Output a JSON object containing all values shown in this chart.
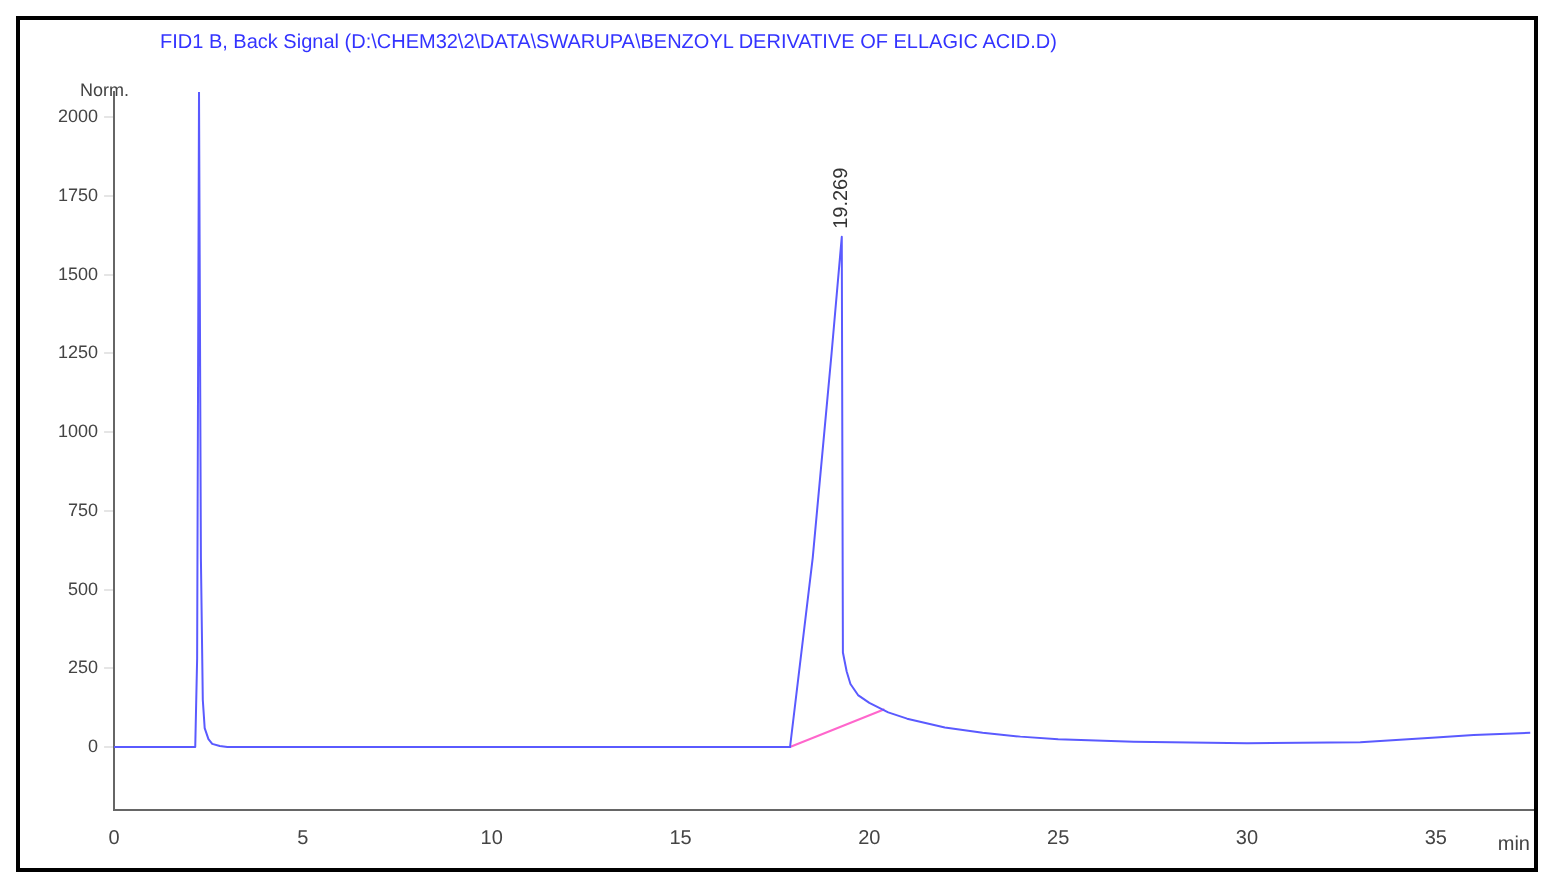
{
  "chart_data": {
    "type": "line",
    "title": "FID1 B, Back Signal (D:\\CHEM32\\2\\DATA\\SWARUPA\\BENZOYL DERIVATIVE OF ELLAGIC ACID.D)",
    "ylabel": "Norm.",
    "xlabel": "min",
    "series": [
      {
        "color": "#5a5aff",
        "x": [
          0,
          2.15,
          2.2,
          2.25,
          2.3,
          2.35,
          2.4,
          2.5,
          2.6,
          2.8,
          3,
          5,
          10,
          15,
          17.9,
          18.5,
          19,
          19.27,
          19.3,
          19.4,
          19.5,
          19.7,
          20,
          20.5,
          21,
          22,
          23,
          24,
          25,
          27,
          30,
          33,
          35,
          36,
          37.5
        ],
        "values": [
          0,
          0,
          280,
          2080,
          600,
          150,
          60,
          25,
          10,
          3,
          0,
          0,
          0,
          0,
          0,
          600,
          1250,
          1620,
          300,
          240,
          200,
          165,
          140,
          110,
          90,
          62,
          45,
          33,
          25,
          17,
          12,
          15,
          30,
          38,
          45
        ]
      },
      {
        "color": "#ff66cc",
        "x": [
          17.9,
          20.4
        ],
        "values": [
          0,
          120
        ]
      }
    ],
    "annotations": [
      {
        "text": "19.269",
        "x": 19.269,
        "y": 1620
      }
    ],
    "xlim": [
      0,
      37.6
    ],
    "xticks": [
      0,
      5,
      10,
      15,
      20,
      25,
      30,
      35
    ],
    "ylim": [
      -200,
      2080
    ],
    "yticks": [
      0,
      250,
      500,
      750,
      1000,
      1250,
      1500,
      1750,
      2000
    ],
    "grid": false,
    "legend": false,
    "marker": "none",
    "line_style": "solid"
  }
}
